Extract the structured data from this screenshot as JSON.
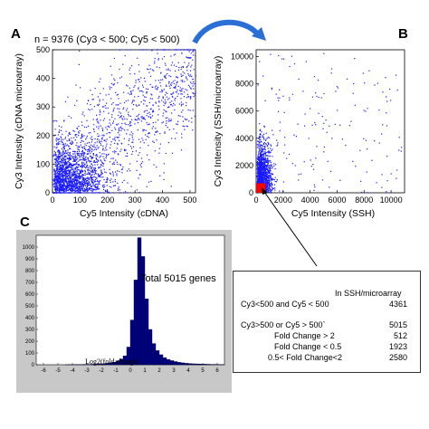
{
  "figure": {
    "panel_labels": [
      "A",
      "B",
      "C"
    ],
    "annotation_n": "n = 9376 (Cy3 < 500; Cy5 < 500)",
    "colors": {
      "points": "#1a1aff",
      "highlight": "#ff0000",
      "arrow": "#2a6fd6",
      "hist_fill": "#000080",
      "hist_bg": "#c8c8c8"
    }
  },
  "chart_data": [
    {
      "type": "scatter",
      "panel": "A",
      "xlabel": "Cy5 Intensity (cDNA)",
      "ylabel": "Cy3 Intensity (cDNA microarray)",
      "xlim": [
        0,
        520
      ],
      "ylim": [
        0,
        500
      ],
      "xticks": [
        0,
        100,
        200,
        300,
        400,
        500
      ],
      "yticks": [
        0,
        100,
        200,
        300,
        400,
        500
      ],
      "n_points": 9376,
      "description_note": "dense cloud near origin spreading toward upper right"
    },
    {
      "type": "scatter",
      "panel": "B",
      "xlabel": "Cy5 Intensity (SSH)",
      "ylabel": "Cy3 Intensity (SSH/microarray)",
      "xlim": [
        0,
        11000
      ],
      "ylim": [
        0,
        10500
      ],
      "xticks": [
        0,
        2000,
        4000,
        6000,
        8000,
        10000
      ],
      "yticks": [
        0,
        2000,
        4000,
        6000,
        8000,
        10000
      ],
      "highlight_region": {
        "x": [
          0,
          500
        ],
        "y": [
          0,
          500
        ]
      }
    },
    {
      "type": "bar",
      "panel": "C",
      "annotation": "Total 5015 genes",
      "xlabel": "Log2(fold change)",
      "xlim": [
        -6.5,
        6.5
      ],
      "ylim": [
        0,
        1100
      ],
      "xticks": [
        -6,
        -5,
        -4,
        -3,
        -2,
        -1,
        0,
        1,
        2,
        3,
        4,
        5,
        6
      ],
      "yticks": [
        0,
        100,
        200,
        300,
        400,
        500,
        600,
        700,
        800,
        900,
        1000
      ],
      "bin_width": 0.25,
      "bins_start": -4.5,
      "values": [
        1,
        1,
        1,
        2,
        2,
        3,
        3,
        4,
        5,
        6,
        8,
        12,
        16,
        22,
        32,
        48,
        75,
        150,
        380,
        720,
        1080,
        920,
        560,
        300,
        180,
        120,
        85,
        60,
        45,
        35,
        27,
        20,
        16,
        12,
        10,
        8,
        7,
        6,
        5,
        4,
        3,
        3,
        2,
        2
      ]
    }
  ],
  "table": {
    "header": "In SSH/microarray",
    "rows": [
      {
        "label": "Cy3<500 and Cy5 < 500",
        "value": "4361"
      },
      {
        "label": "Cy3>500 or Cy5 > 500`",
        "value": "5015"
      },
      {
        "label": "Fold Change > 2",
        "value": "512"
      },
      {
        "label": "Fold Change < 0.5",
        "value": "1923"
      },
      {
        "label": "0.5< Fold Change<2",
        "value": "2580"
      }
    ]
  }
}
